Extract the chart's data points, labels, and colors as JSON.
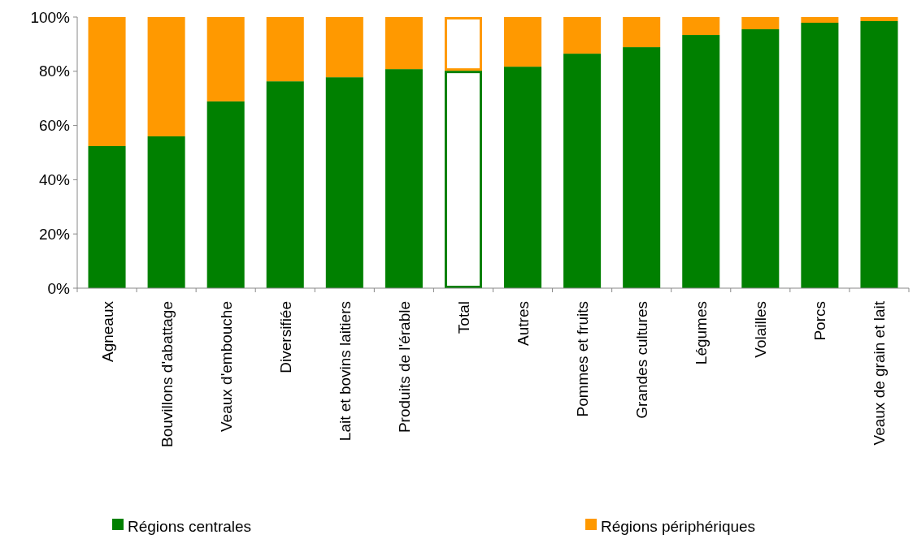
{
  "chart_data": {
    "type": "bar",
    "stacked": true,
    "categories": [
      "Agneaux",
      "Bouvillons d'abattage",
      "Veaux d'embouche",
      "Diversifiée",
      "Lait et bovins laitiers",
      "Produits de l'érable",
      "Total",
      "Autres",
      "Pommes et fruits",
      "Grandes cultures",
      "Légumes",
      "Volailles",
      "Porcs",
      "Veaux de grain et lait"
    ],
    "series": [
      {
        "name": "Régions centrales",
        "color": "#008000",
        "colors": [
          "#008000",
          "#008000",
          "#008000",
          "#008000",
          "#008000",
          "#008000",
          "#ffffff",
          "#008000",
          "#008000",
          "#008000",
          "#008000",
          "#008000",
          "#008000",
          "#008000"
        ],
        "values": [
          52.4,
          56.0,
          68.9,
          76.3,
          77.8,
          80.8,
          80.2,
          81.7,
          86.5,
          88.9,
          93.4,
          95.5,
          97.9,
          98.5
        ]
      },
      {
        "name": "Régions périphériques",
        "color": "#ff9900",
        "colors": [
          "#ff9900",
          "#ff9900",
          "#ff9900",
          "#ff9900",
          "#ff9900",
          "#ff9900",
          "#ffffff",
          "#ff9900",
          "#ff9900",
          "#ff9900",
          "#ff9900",
          "#ff9900",
          "#ff9900",
          "#ff9900"
        ],
        "values": [
          47.6,
          44.0,
          31.1,
          23.7,
          22.2,
          19.2,
          19.8,
          18.3,
          13.5,
          11.1,
          6.6,
          4.5,
          2.1,
          1.5
        ]
      }
    ],
    "ylim": [
      0,
      100
    ],
    "yticks": [
      {
        "value": 0,
        "label": "0%"
      },
      {
        "value": 20,
        "label": "20%"
      },
      {
        "value": 40,
        "label": "40%"
      },
      {
        "value": 60,
        "label": "60%"
      },
      {
        "value": 80,
        "label": "80%"
      },
      {
        "value": 100,
        "label": "100%"
      }
    ],
    "grid": false,
    "legend": "bottom"
  }
}
